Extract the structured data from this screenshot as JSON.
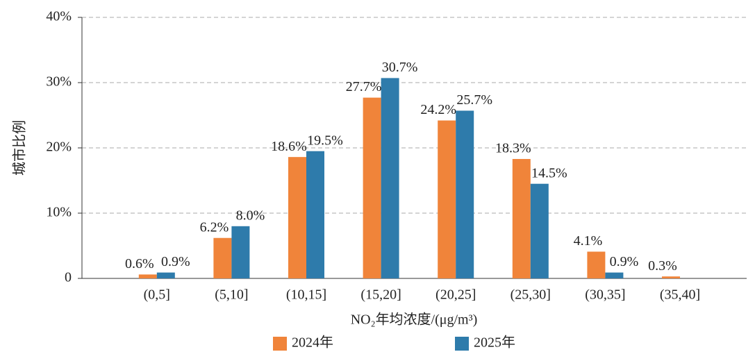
{
  "chart_data": {
    "type": "bar",
    "x_label": "NO₂年均浓度/(μg/m³)",
    "y_label": "城市比例",
    "categories": [
      "(0,5]",
      "(5,10]",
      "(10,15]",
      "(15,20]",
      "(20,25]",
      "(25,30]",
      "(30,35]",
      "(35,40]"
    ],
    "series": [
      {
        "name": "2024年",
        "color": "#f0843a",
        "values": [
          0.6,
          6.2,
          18.6,
          27.7,
          24.2,
          18.3,
          4.1,
          0.3
        ],
        "value_labels": [
          "0.6%",
          "6.2%",
          "18.6%",
          "27.7%",
          "24.2%",
          "18.3%",
          "4.1%",
          "0.3%"
        ]
      },
      {
        "name": "2025年",
        "color": "#2e7bab",
        "values": [
          0.9,
          8.0,
          19.5,
          30.7,
          25.7,
          14.5,
          0.9,
          null
        ],
        "value_labels": [
          "0.9%",
          "8.0%",
          "19.5%",
          "30.7%",
          "25.7%",
          "14.5%",
          "0.9%",
          null
        ]
      }
    ],
    "ylim": [
      0,
      40
    ],
    "yticks": [
      0,
      {
        "value": 10,
        "label": "10%"
      },
      {
        "value": 20,
        "label": "20%"
      },
      {
        "value": 30,
        "label": "30%"
      },
      {
        "value": 40,
        "label": "40%"
      }
    ],
    "grid": true,
    "legend": "bottom"
  }
}
